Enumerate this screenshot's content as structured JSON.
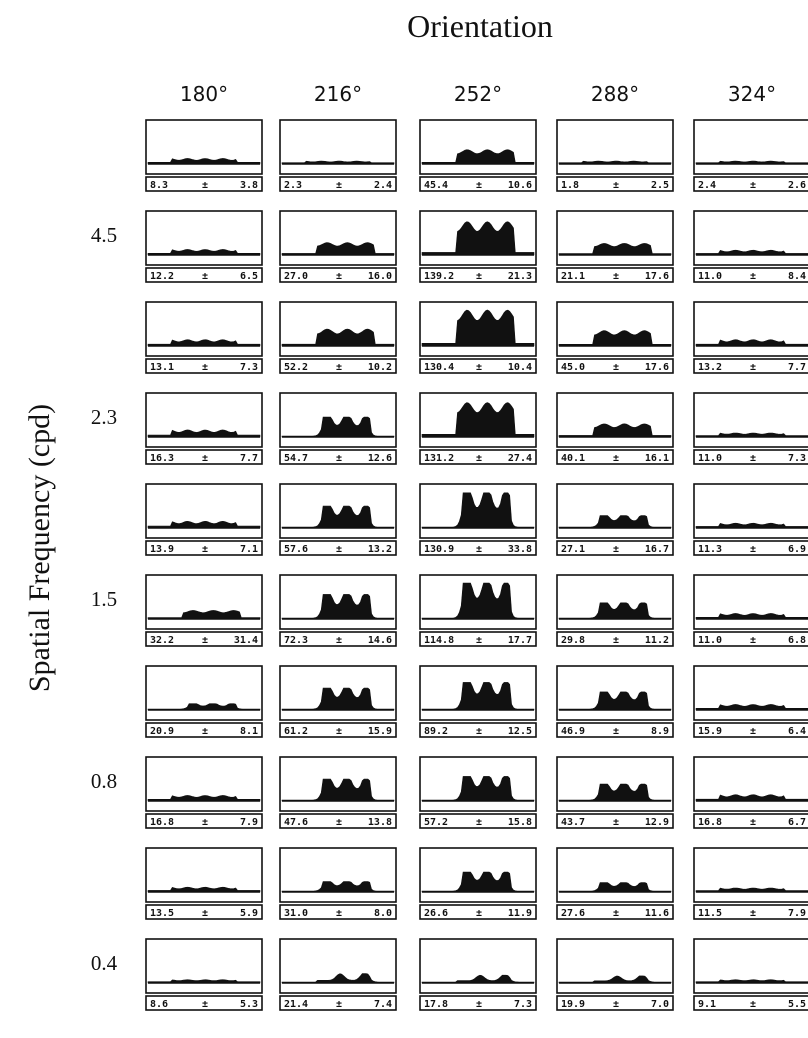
{
  "chart_data": {
    "type": "area",
    "title": "Orientation",
    "xlabel": "Orientation",
    "ylabel": "Spatial Frequency (cpd)",
    "orientations": [
      "180°",
      "216°",
      "252°",
      "288°",
      "324°"
    ],
    "row_labels": [
      "",
      "4.5",
      "",
      "2.3",
      "",
      "1.5",
      "",
      "0.8",
      "",
      "0.4"
    ],
    "panels": [
      [
        {
          "mean": "8.3",
          "sd": "3.8",
          "shape": "flat",
          "amp": 0.12
        },
        {
          "mean": "2.3",
          "sd": "2.4",
          "shape": "flat",
          "amp": 0.05
        },
        {
          "mean": "45.4",
          "sd": "10.6",
          "shape": "plateau",
          "amp": 0.35
        },
        {
          "mean": "1.8",
          "sd": "2.5",
          "shape": "flat",
          "amp": 0.05
        },
        {
          "mean": "2.4",
          "sd": "2.6",
          "shape": "flat",
          "amp": 0.05
        }
      ],
      [
        {
          "mean": "12.2",
          "sd": "6.5",
          "shape": "flat",
          "amp": 0.12
        },
        {
          "mean": "27.0",
          "sd": "16.0",
          "shape": "plateau",
          "amp": 0.3
        },
        {
          "mean": "139.2",
          "sd": "21.3",
          "shape": "plateau",
          "amp": 0.85
        },
        {
          "mean": "21.1",
          "sd": "17.6",
          "shape": "plateau",
          "amp": 0.28
        },
        {
          "mean": "11.0",
          "sd": "8.4",
          "shape": "flat",
          "amp": 0.1
        }
      ],
      [
        {
          "mean": "13.1",
          "sd": "7.3",
          "shape": "flat",
          "amp": 0.14
        },
        {
          "mean": "52.2",
          "sd": "10.2",
          "shape": "plateau",
          "amp": 0.42
        },
        {
          "mean": "130.4",
          "sd": "10.4",
          "shape": "plateau",
          "amp": 0.92
        },
        {
          "mean": "45.0",
          "sd": "17.6",
          "shape": "plateau",
          "amp": 0.38
        },
        {
          "mean": "13.2",
          "sd": "7.7",
          "shape": "flat",
          "amp": 0.14
        }
      ],
      [
        {
          "mean": "16.3",
          "sd": "7.7",
          "shape": "flat",
          "amp": 0.16
        },
        {
          "mean": "54.7",
          "sd": "12.6",
          "shape": "three",
          "amp": 0.5
        },
        {
          "mean": "131.2",
          "sd": "27.4",
          "shape": "plateau",
          "amp": 0.88
        },
        {
          "mean": "40.1",
          "sd": "16.1",
          "shape": "plateau",
          "amp": 0.32
        },
        {
          "mean": "11.0",
          "sd": "7.3",
          "shape": "flat",
          "amp": 0.08
        }
      ],
      [
        {
          "mean": "13.9",
          "sd": "7.1",
          "shape": "flat",
          "amp": 0.15
        },
        {
          "mean": "57.6",
          "sd": "13.2",
          "shape": "three",
          "amp": 0.55
        },
        {
          "mean": "130.9",
          "sd": "33.8",
          "shape": "three",
          "amp": 0.9
        },
        {
          "mean": "27.1",
          "sd": "16.7",
          "shape": "three",
          "amp": 0.3
        },
        {
          "mean": "11.3",
          "sd": "6.9",
          "shape": "flat",
          "amp": 0.1
        }
      ],
      [
        {
          "mean": "32.2",
          "sd": "31.4",
          "shape": "plateau",
          "amp": 0.2
        },
        {
          "mean": "72.3",
          "sd": "14.6",
          "shape": "three",
          "amp": 0.62
        },
        {
          "mean": "114.8",
          "sd": "17.7",
          "shape": "three",
          "amp": 0.92
        },
        {
          "mean": "29.8",
          "sd": "11.2",
          "shape": "three",
          "amp": 0.4
        },
        {
          "mean": "11.0",
          "sd": "6.8",
          "shape": "flat",
          "amp": 0.12
        }
      ],
      [
        {
          "mean": "20.9",
          "sd": "8.1",
          "shape": "three",
          "amp": 0.14
        },
        {
          "mean": "61.2",
          "sd": "15.9",
          "shape": "three",
          "amp": 0.55
        },
        {
          "mean": "89.2",
          "sd": "12.5",
          "shape": "three",
          "amp": 0.7
        },
        {
          "mean": "46.9",
          "sd": "8.9",
          "shape": "three",
          "amp": 0.45
        },
        {
          "mean": "15.9",
          "sd": "6.4",
          "shape": "flat",
          "amp": 0.12
        }
      ],
      [
        {
          "mean": "16.8",
          "sd": "7.9",
          "shape": "flat",
          "amp": 0.12
        },
        {
          "mean": "47.6",
          "sd": "13.8",
          "shape": "three",
          "amp": 0.55
        },
        {
          "mean": "57.2",
          "sd": "15.8",
          "shape": "three",
          "amp": 0.62
        },
        {
          "mean": "43.7",
          "sd": "12.9",
          "shape": "three",
          "amp": 0.42
        },
        {
          "mean": "16.8",
          "sd": "6.7",
          "shape": "flat",
          "amp": 0.14
        }
      ],
      [
        {
          "mean": "13.5",
          "sd": "5.9",
          "shape": "flat",
          "amp": 0.1
        },
        {
          "mean": "31.0",
          "sd": "8.0",
          "shape": "three",
          "amp": 0.25
        },
        {
          "mean": "26.6",
          "sd": "11.9",
          "shape": "three",
          "amp": 0.5
        },
        {
          "mean": "27.6",
          "sd": "11.6",
          "shape": "three",
          "amp": 0.22
        },
        {
          "mean": "11.5",
          "sd": "7.9",
          "shape": "flat",
          "amp": 0.08
        }
      ],
      [
        {
          "mean": "8.6",
          "sd": "5.3",
          "shape": "flat",
          "amp": 0.06
        },
        {
          "mean": "21.4",
          "sd": "7.4",
          "shape": "two",
          "amp": 0.22
        },
        {
          "mean": "17.8",
          "sd": "7.3",
          "shape": "two",
          "amp": 0.18
        },
        {
          "mean": "19.9",
          "sd": "7.0",
          "shape": "two",
          "amp": 0.16
        },
        {
          "mean": "9.1",
          "sd": "5.5",
          "shape": "flat",
          "amp": 0.06
        }
      ]
    ]
  }
}
